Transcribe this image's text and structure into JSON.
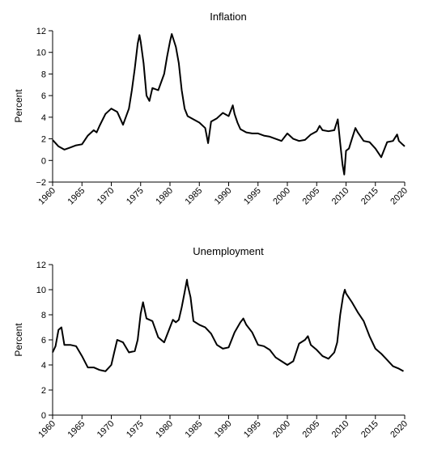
{
  "chart_data": [
    {
      "type": "line",
      "title": "Inflation",
      "xlabel": "",
      "ylabel": "Percent",
      "xlim": [
        1960,
        2020
      ],
      "ylim": [
        -2,
        12
      ],
      "grid": false,
      "x_ticks": [
        1960,
        1965,
        1970,
        1975,
        1980,
        1985,
        1990,
        1995,
        2000,
        2005,
        2010,
        2015,
        2020
      ],
      "y_ticks": [
        -2,
        0,
        2,
        4,
        6,
        8,
        10,
        12
      ],
      "series": [
        {
          "x": [
            1960,
            1961,
            1962,
            1963,
            1964,
            1965,
            1966,
            1967,
            1967.5,
            1968,
            1969,
            1970,
            1971,
            1972,
            1973,
            1973.5,
            1974,
            1974.5,
            1974.8,
            1975,
            1975.5,
            1976,
            1976.5,
            1977,
            1978,
            1979,
            1979.5,
            1980,
            1980.3,
            1981,
            1981.5,
            1982,
            1982.5,
            1983,
            1984,
            1985,
            1986,
            1986.5,
            1987,
            1988,
            1989,
            1990,
            1990.7,
            1991,
            1991.5,
            1992,
            1993,
            1994,
            1995,
            1996,
            1997,
            1998,
            1999,
            2000,
            2001,
            2002,
            2003,
            2004,
            2005,
            2005.5,
            2006,
            2007,
            2008,
            2008.6,
            2009,
            2009.4,
            2009.7,
            2010,
            2010.5,
            2011,
            2011.6,
            2012,
            2013,
            2014,
            2015,
            2016,
            2017,
            2018,
            2018.7,
            2019,
            2019.6,
            2020
          ],
          "values": [
            1.9,
            1.3,
            1.0,
            1.2,
            1.4,
            1.5,
            2.3,
            2.8,
            2.6,
            3.2,
            4.3,
            4.8,
            4.5,
            3.3,
            4.8,
            6.5,
            8.5,
            10.8,
            11.6,
            11.0,
            9.0,
            6.0,
            5.5,
            6.7,
            6.5,
            8.0,
            9.6,
            11.0,
            11.7,
            10.5,
            9.0,
            6.5,
            4.8,
            4.1,
            3.8,
            3.5,
            3.0,
            1.6,
            3.6,
            3.9,
            4.4,
            4.1,
            5.1,
            4.3,
            3.5,
            2.9,
            2.6,
            2.5,
            2.5,
            2.3,
            2.2,
            2.0,
            1.8,
            2.5,
            2.0,
            1.8,
            1.9,
            2.4,
            2.7,
            3.2,
            2.8,
            2.7,
            2.8,
            3.8,
            1.6,
            -0.4,
            -1.3,
            0.9,
            1.1,
            2.0,
            3.0,
            2.6,
            1.8,
            1.7,
            1.1,
            0.3,
            1.7,
            1.8,
            2.4,
            1.8,
            1.5,
            1.3
          ]
        }
      ]
    },
    {
      "type": "line",
      "title": "Unemployment",
      "xlabel": "",
      "ylabel": "Percent",
      "xlim": [
        1960,
        2020
      ],
      "ylim": [
        0,
        12
      ],
      "grid": false,
      "x_ticks": [
        1960,
        1965,
        1970,
        1975,
        1980,
        1985,
        1990,
        1995,
        2000,
        2005,
        2010,
        2015,
        2020
      ],
      "y_ticks": [
        0,
        2,
        4,
        6,
        8,
        10,
        12
      ],
      "series": [
        {
          "x": [
            1960,
            1960.5,
            1961,
            1961.5,
            1962,
            1963,
            1964,
            1965,
            1966,
            1967,
            1968,
            1969,
            1970,
            1970.5,
            1971,
            1972,
            1973,
            1974,
            1974.5,
            1975,
            1975.4,
            1976,
            1977,
            1978,
            1979,
            1980,
            1980.5,
            1981,
            1981.5,
            1982,
            1982.5,
            1982.9,
            1983,
            1983.5,
            1984,
            1985,
            1986,
            1987,
            1988,
            1989,
            1990,
            1991,
            1992,
            1992.5,
            1993,
            1994,
            1995,
            1996,
            1997,
            1998,
            1999,
            2000,
            2001,
            2002,
            2003,
            2003.5,
            2004,
            2005,
            2006,
            2007,
            2008,
            2008.5,
            2009,
            2009.5,
            2009.8,
            2010,
            2011,
            2012,
            2013,
            2014,
            2015,
            2016,
            2017,
            2018,
            2019,
            2019.8
          ],
          "values": [
            5.0,
            5.5,
            6.8,
            7.0,
            5.6,
            5.6,
            5.5,
            4.7,
            3.8,
            3.8,
            3.6,
            3.5,
            4.0,
            5.0,
            6.0,
            5.8,
            5.0,
            5.1,
            6.0,
            8.1,
            9.0,
            7.7,
            7.5,
            6.2,
            5.8,
            7.0,
            7.6,
            7.4,
            7.6,
            8.6,
            9.8,
            10.8,
            10.4,
            9.4,
            7.5,
            7.2,
            7.0,
            6.5,
            5.6,
            5.3,
            5.4,
            6.6,
            7.4,
            7.7,
            7.2,
            6.6,
            5.6,
            5.5,
            5.2,
            4.6,
            4.3,
            4.0,
            4.3,
            5.7,
            6.0,
            6.3,
            5.6,
            5.2,
            4.7,
            4.5,
            5.0,
            5.8,
            8.0,
            9.5,
            10.0,
            9.7,
            9.0,
            8.2,
            7.5,
            6.3,
            5.3,
            4.9,
            4.4,
            3.9,
            3.7,
            3.5
          ]
        }
      ]
    }
  ]
}
